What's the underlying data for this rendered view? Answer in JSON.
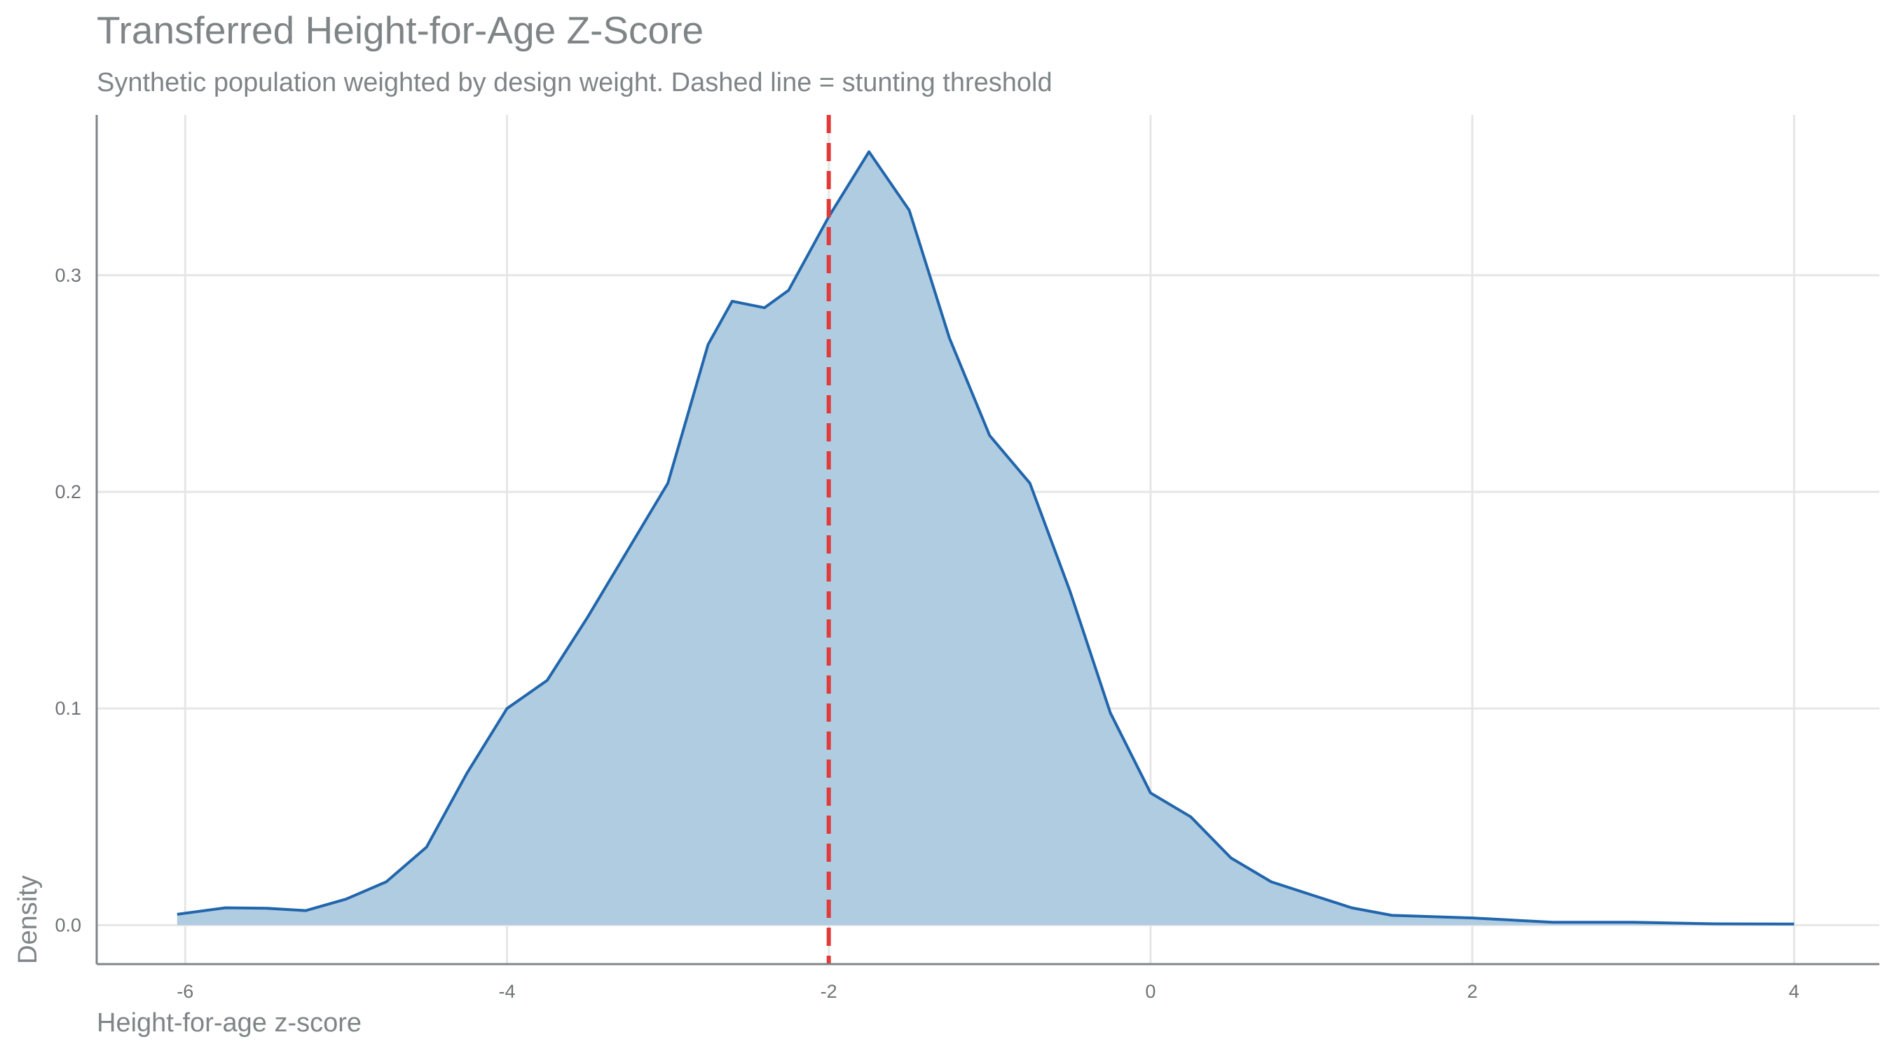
{
  "chart_data": {
    "type": "area",
    "title": "Transferred Height-for-Age Z-Score",
    "subtitle": "Synthetic population weighted by design weight. Dashed line = stunting threshold",
    "x_label": "Height-for-age z-score",
    "y_label": "Density",
    "x": [
      -6.05,
      -5.75,
      -5.5,
      -5.25,
      -5.0,
      -4.75,
      -4.5,
      -4.25,
      -4.0,
      -3.75,
      -3.5,
      -3.25,
      -3.0,
      -2.75,
      -2.6,
      -2.4,
      -2.25,
      -2.0,
      -1.75,
      -1.5,
      -1.25,
      -1.0,
      -0.75,
      -0.5,
      -0.25,
      0.0,
      0.25,
      0.5,
      0.75,
      1.0,
      1.25,
      1.5,
      2.0,
      2.5,
      3.0,
      3.5,
      4.0
    ],
    "values": [
      0.005,
      0.008,
      0.0078,
      0.0067,
      0.012,
      0.02,
      0.036,
      0.07,
      0.1,
      0.113,
      0.142,
      0.173,
      0.204,
      0.268,
      0.288,
      0.285,
      0.293,
      0.327,
      0.357,
      0.33,
      0.271,
      0.226,
      0.204,
      0.154,
      0.098,
      0.061,
      0.05,
      0.031,
      0.02,
      0.014,
      0.008,
      0.0045,
      0.0033,
      0.0013,
      0.0013,
      0.0006,
      0.0005
    ],
    "color": "#2166ac",
    "fill_color": "#b0cce1",
    "threshold": {
      "value": -2,
      "color": "#e03a3a"
    },
    "xlim": [
      -6.55,
      4.53
    ],
    "ylim": [
      -0.018,
      0.374
    ],
    "xticks": [
      -6,
      -4,
      -2,
      0,
      2,
      4
    ],
    "yticks": [
      {
        "value": 0,
        "label": "0.0"
      },
      0.1,
      0.2,
      0.3
    ],
    "grid": true
  }
}
